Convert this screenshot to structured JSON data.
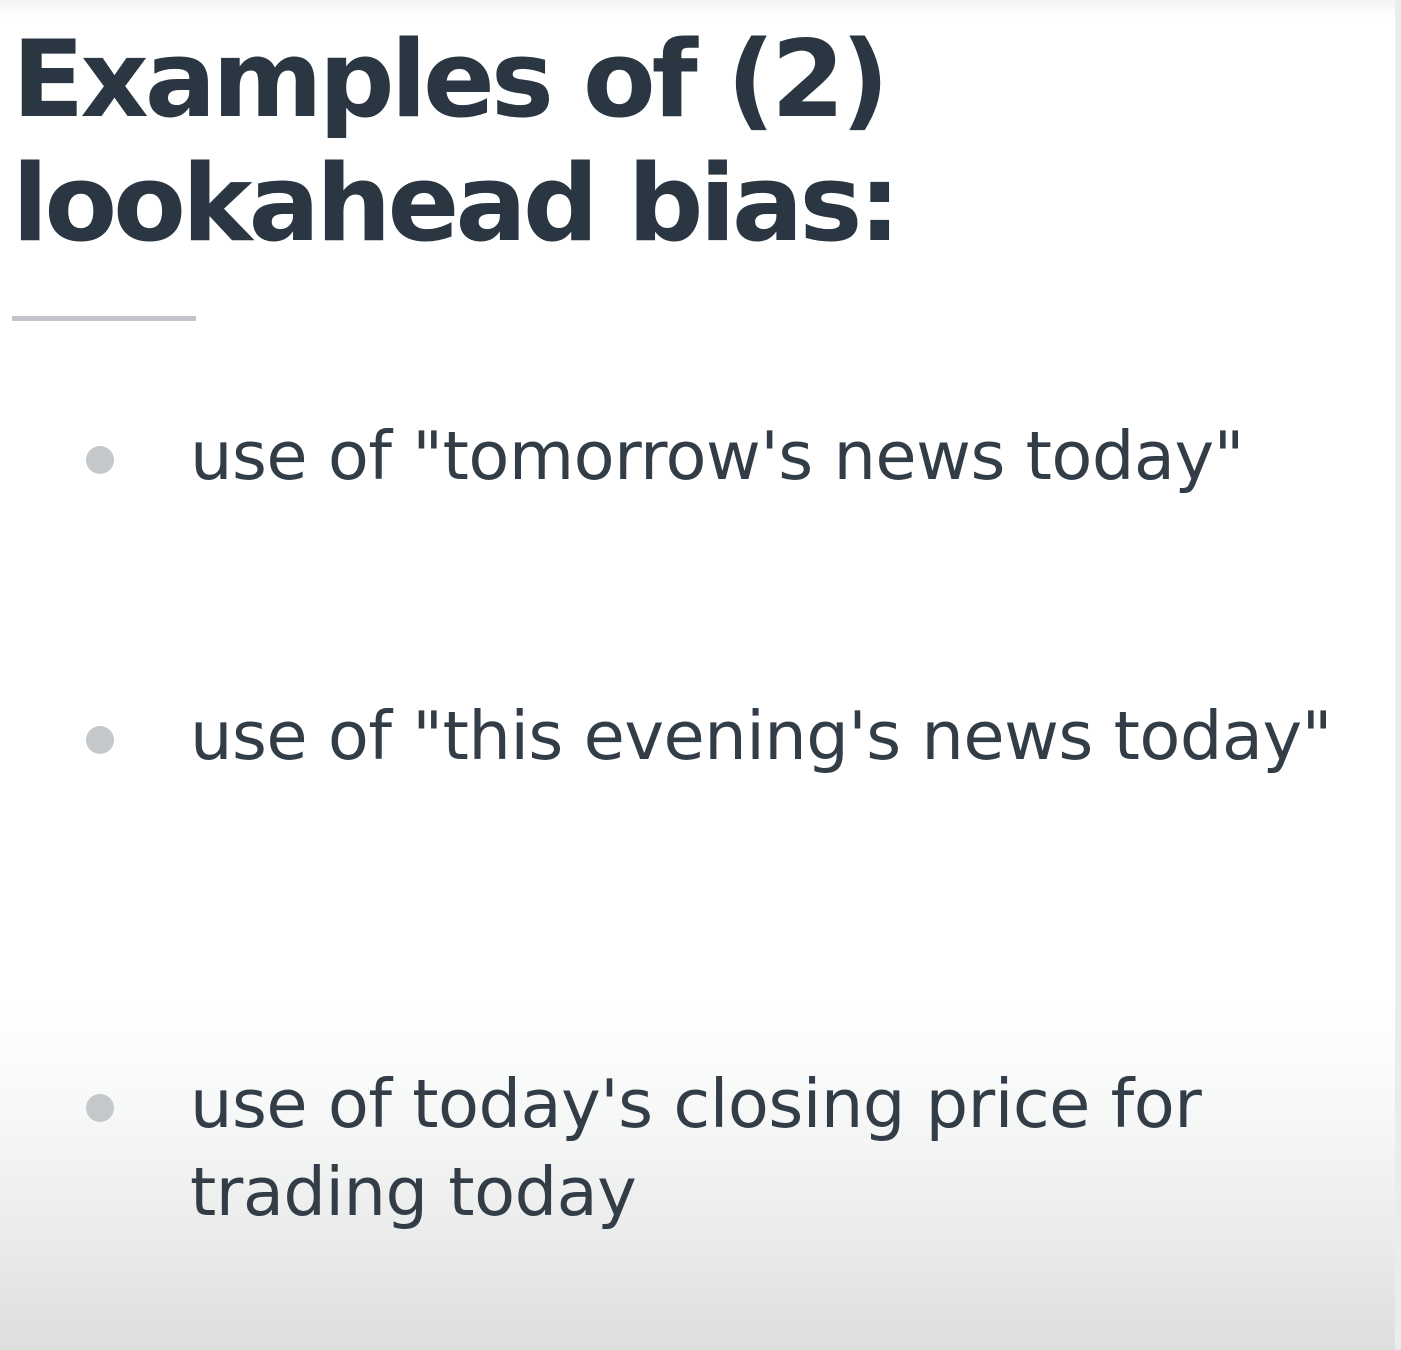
{
  "slide": {
    "title": "Examples of (2)\nlookahead bias:",
    "bullets": [
      "use of \"tomorrow's news today\"",
      "use of \"this evening's news today\"",
      "use of today's closing price for trading today"
    ]
  }
}
